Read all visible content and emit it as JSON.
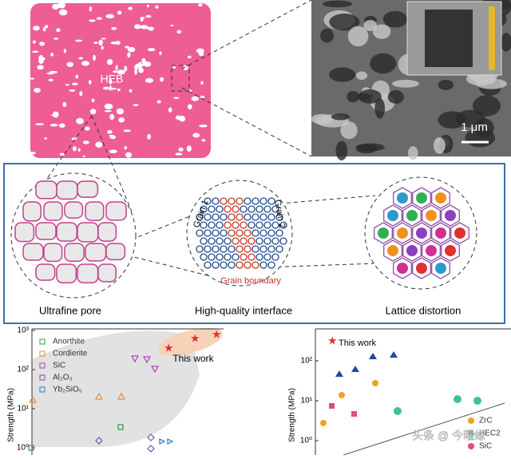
{
  "top": {
    "blob_label": "HEB",
    "scale_bar": "1 μm"
  },
  "middle": {
    "labels": [
      "Ultrafine pore",
      "High-quality interface",
      "Lattice distortion"
    ],
    "grain_1": "Grain 1",
    "grain_2": "Grain 2",
    "grain_boundary": "Grain boundary"
  },
  "left_plot": {
    "y_label": "Strength (MPa)",
    "yticks": [
      "10³",
      "10²",
      "10¹",
      "10⁰"
    ],
    "legend": [
      "Anorthite",
      "Cordierite",
      "SiC",
      "Al₂O₃",
      "Yb₂SiO₅"
    ],
    "this_work": "This work"
  },
  "right_plot": {
    "y_label": "Strength (MPa)",
    "yticks": [
      "10²",
      "10¹",
      "10⁰"
    ],
    "this_work": "This work",
    "legend": [
      "ZrC",
      "HEC2",
      "SiC"
    ]
  },
  "watermark": "头条 @ 今曜缘"
}
